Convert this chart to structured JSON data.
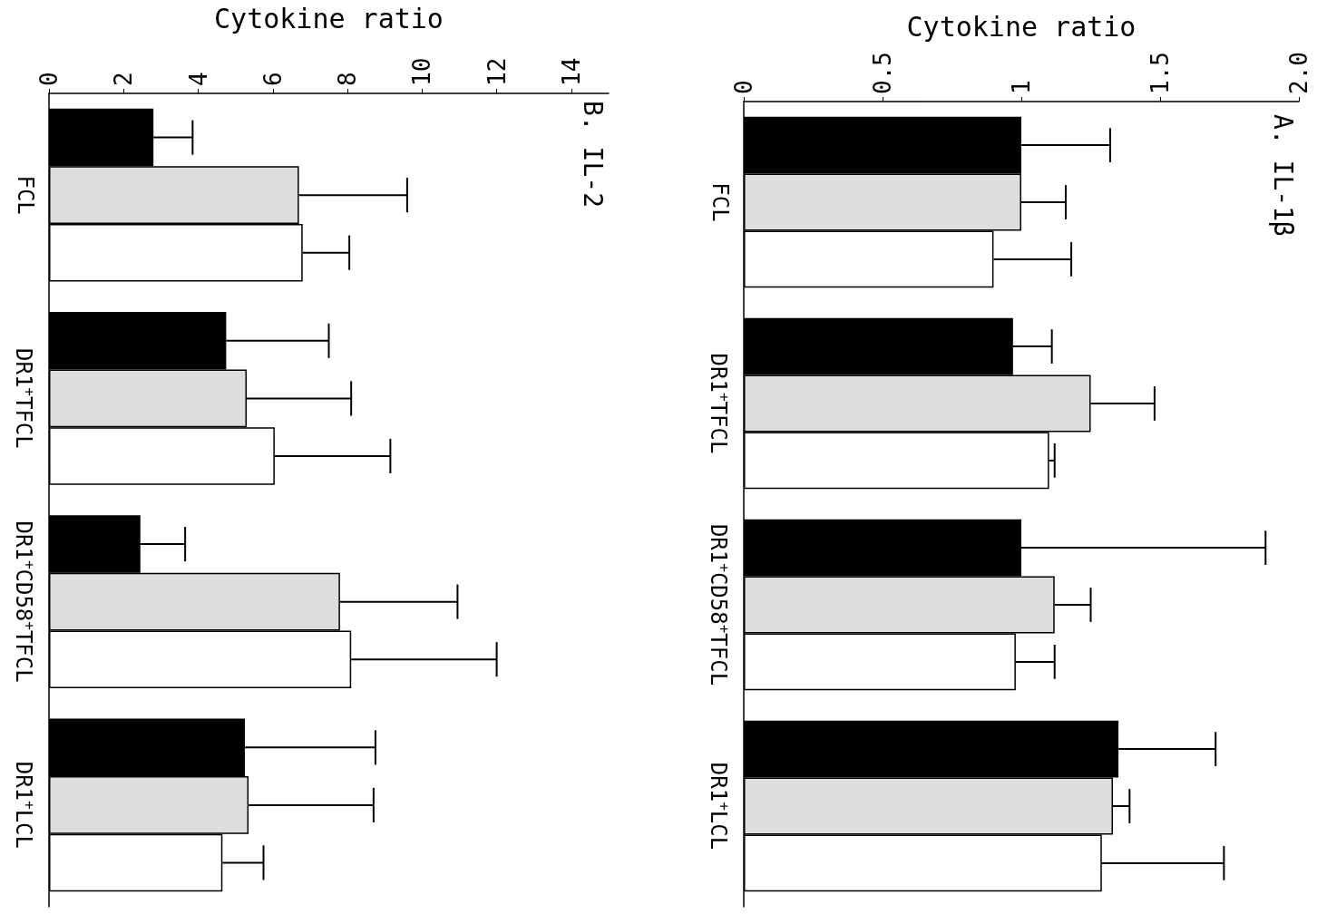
{
  "chart_data": [
    {
      "type": "bar",
      "orientation": "horizontal",
      "title": "A. IL-1β",
      "xlabel": "Cytokine ratio",
      "categories": [
        "FCL",
        "DR1$^{+}$TFCL",
        "DR1$^{+}$CD58$^{+}$TFCL",
        "DR1$^{+}$LCL"
      ],
      "series": [
        {
          "color": "#000000",
          "values": [
            1.0,
            0.97,
            1.0,
            1.35
          ],
          "errors": [
            [
              1.0,
              1.32
            ],
            [
              0.97,
              1.11
            ],
            [
              1.0,
              1.88
            ],
            [
              1.35,
              1.7
            ]
          ]
        },
        {
          "color": "#dddddd",
          "values": [
            1.0,
            1.25,
            1.12,
            1.33
          ],
          "errors": [
            [
              1.0,
              1.16
            ],
            [
              1.25,
              1.48
            ],
            [
              1.12,
              1.25
            ],
            [
              1.33,
              1.39
            ]
          ]
        },
        {
          "color": "#ffffff",
          "values": [
            0.9,
            1.1,
            0.98,
            1.29
          ],
          "errors": [
            [
              0.9,
              1.18
            ],
            [
              1.1,
              1.12
            ],
            [
              0.98,
              1.12
            ],
            [
              1.29,
              1.73
            ]
          ]
        }
      ],
      "xlim": [
        0,
        2
      ],
      "xticks": [
        0,
        0.5,
        1,
        1.5,
        {
          "value": 2,
          "label": "2.0"
        }
      ]
    },
    {
      "type": "bar",
      "orientation": "horizontal",
      "title": "B. IL-2",
      "xlabel": "Cytokine ratio",
      "categories": [
        "FCL",
        "DR1$^{+}$TFCL",
        "DR1$^{+}$CD58$^{+}$TFCL",
        "DR1$^{+}$LCL"
      ],
      "series": [
        {
          "color": "#000000",
          "values": [
            2.8,
            4.75,
            2.45,
            5.25
          ],
          "errors": [
            [
              2.8,
              3.85
            ],
            [
              4.75,
              7.5
            ],
            [
              2.45,
              3.65
            ],
            [
              5.25,
              8.75
            ]
          ]
        },
        {
          "color": "#dddddd",
          "values": [
            6.7,
            5.3,
            7.8,
            5.35
          ],
          "errors": [
            [
              6.7,
              9.6
            ],
            [
              5.3,
              8.1
            ],
            [
              7.8,
              10.95
            ],
            [
              5.35,
              8.7
            ]
          ]
        },
        {
          "color": "#ffffff",
          "values": [
            6.8,
            6.05,
            8.1,
            4.65
          ],
          "errors": [
            [
              6.8,
              8.05
            ],
            [
              6.05,
              9.15
            ],
            [
              8.1,
              12.0
            ],
            [
              4.65,
              5.75
            ]
          ]
        }
      ],
      "xlim": [
        0,
        15
      ],
      "xticks": [
        0,
        2,
        4,
        6,
        8,
        10,
        12,
        14
      ]
    }
  ]
}
